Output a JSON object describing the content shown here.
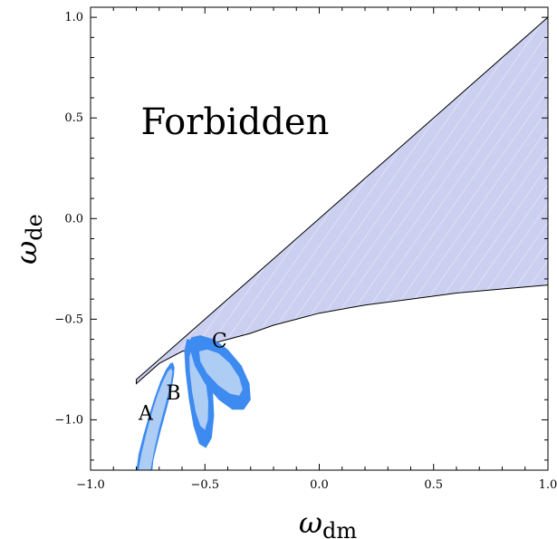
{
  "chart_data": {
    "type": "area",
    "title": "",
    "xlabel": {
      "symbol": "ω",
      "subscript": "dm"
    },
    "ylabel": {
      "symbol": "ω",
      "subscript": "de"
    },
    "xlim": [
      -1.0,
      1.0
    ],
    "ylim": [
      -1.25,
      1.05
    ],
    "xticks": [
      -1.0,
      -0.5,
      0.0,
      0.5,
      1.0
    ],
    "xtick_labels": [
      "−1.0",
      "−0.5",
      "0.0",
      "0.5",
      "1.0"
    ],
    "yticks": [
      -1.0,
      -0.5,
      0.0,
      0.5,
      1.0
    ],
    "ytick_labels": [
      "−1.0",
      "−0.5",
      "0.0",
      "0.5",
      "1.0"
    ],
    "grid": false,
    "annotation": {
      "text": "Forbidden",
      "x": -0.78,
      "y": 0.42
    },
    "allowed_region": {
      "fill": "#ccd0f0",
      "upper_boundary": [
        [
          -0.8,
          -0.8
        ],
        [
          1.0,
          1.0
        ]
      ],
      "lower_boundary": [
        [
          -0.8,
          -0.82
        ],
        [
          -0.7,
          -0.72
        ],
        [
          -0.6,
          -0.66
        ],
        [
          -0.5,
          -0.63
        ],
        [
          -0.4,
          -0.6
        ],
        [
          -0.3,
          -0.57
        ],
        [
          -0.2,
          -0.53
        ],
        [
          -0.1,
          -0.5
        ],
        [
          0.0,
          -0.47
        ],
        [
          0.2,
          -0.43
        ],
        [
          0.4,
          -0.4
        ],
        [
          0.6,
          -0.37
        ],
        [
          0.8,
          -0.35
        ],
        [
          1.0,
          -0.33
        ]
      ]
    },
    "contours": [
      {
        "name": "A",
        "label_pos": [
          -0.79,
          -1.0
        ],
        "outer_color": "#3d8af0",
        "inner_color": "#aecdf5",
        "outer": [
          [
            -0.8,
            -1.25
          ],
          [
            -0.79,
            -1.17
          ],
          [
            -0.77,
            -1.08
          ],
          [
            -0.745,
            -0.98
          ],
          [
            -0.72,
            -0.89
          ],
          [
            -0.695,
            -0.81
          ],
          [
            -0.67,
            -0.75
          ],
          [
            -0.652,
            -0.72
          ],
          [
            -0.64,
            -0.715
          ],
          [
            -0.633,
            -0.74
          ],
          [
            -0.636,
            -0.78
          ],
          [
            -0.648,
            -0.86
          ],
          [
            -0.668,
            -0.95
          ],
          [
            -0.69,
            -1.04
          ],
          [
            -0.71,
            -1.13
          ],
          [
            -0.725,
            -1.2
          ],
          [
            -0.73,
            -1.25
          ]
        ],
        "inner": [
          [
            -0.79,
            -1.25
          ],
          [
            -0.778,
            -1.17
          ],
          [
            -0.757,
            -1.07
          ],
          [
            -0.733,
            -0.97
          ],
          [
            -0.708,
            -0.88
          ],
          [
            -0.684,
            -0.81
          ],
          [
            -0.662,
            -0.76
          ],
          [
            -0.648,
            -0.745
          ],
          [
            -0.642,
            -0.76
          ],
          [
            -0.648,
            -0.81
          ],
          [
            -0.662,
            -0.88
          ],
          [
            -0.681,
            -0.96
          ],
          [
            -0.702,
            -1.05
          ],
          [
            -0.72,
            -1.14
          ],
          [
            -0.733,
            -1.22
          ],
          [
            -0.738,
            -1.25
          ]
        ]
      },
      {
        "name": "B",
        "label_pos": [
          -0.67,
          -0.9
        ],
        "outer_color": "#3d8af0",
        "inner_color": "#aecdf5",
        "outer": [
          [
            -0.58,
            -0.6
          ],
          [
            -0.545,
            -0.6
          ],
          [
            -0.51,
            -0.66
          ],
          [
            -0.48,
            -0.75
          ],
          [
            -0.465,
            -0.86
          ],
          [
            -0.46,
            -0.98
          ],
          [
            -0.47,
            -1.09
          ],
          [
            -0.495,
            -1.14
          ],
          [
            -0.525,
            -1.12
          ],
          [
            -0.55,
            -1.03
          ],
          [
            -0.57,
            -0.9
          ],
          [
            -0.585,
            -0.76
          ],
          [
            -0.59,
            -0.66
          ]
        ],
        "inner": [
          [
            -0.562,
            -0.66
          ],
          [
            -0.54,
            -0.67
          ],
          [
            -0.515,
            -0.73
          ],
          [
            -0.495,
            -0.82
          ],
          [
            -0.485,
            -0.91
          ],
          [
            -0.487,
            -1.0
          ],
          [
            -0.5,
            -1.05
          ],
          [
            -0.52,
            -1.03
          ],
          [
            -0.54,
            -0.96
          ],
          [
            -0.556,
            -0.86
          ],
          [
            -0.566,
            -0.76
          ],
          [
            -0.568,
            -0.69
          ]
        ]
      },
      {
        "name": "C",
        "label_pos": [
          -0.47,
          -0.64
        ],
        "outer_color": "#3d8af0",
        "inner_color": "#aecdf5",
        "outer": [
          [
            -0.56,
            -0.59
          ],
          [
            -0.52,
            -0.58
          ],
          [
            -0.46,
            -0.6
          ],
          [
            -0.4,
            -0.65
          ],
          [
            -0.34,
            -0.73
          ],
          [
            -0.305,
            -0.82
          ],
          [
            -0.3,
            -0.9
          ],
          [
            -0.33,
            -0.95
          ],
          [
            -0.38,
            -0.95
          ],
          [
            -0.44,
            -0.9
          ],
          [
            -0.5,
            -0.82
          ],
          [
            -0.545,
            -0.73
          ],
          [
            -0.565,
            -0.65
          ]
        ],
        "inner": [
          [
            -0.525,
            -0.66
          ],
          [
            -0.49,
            -0.65
          ],
          [
            -0.44,
            -0.67
          ],
          [
            -0.39,
            -0.72
          ],
          [
            -0.35,
            -0.79
          ],
          [
            -0.335,
            -0.85
          ],
          [
            -0.35,
            -0.88
          ],
          [
            -0.39,
            -0.87
          ],
          [
            -0.44,
            -0.83
          ],
          [
            -0.49,
            -0.77
          ],
          [
            -0.52,
            -0.71
          ]
        ]
      }
    ]
  }
}
